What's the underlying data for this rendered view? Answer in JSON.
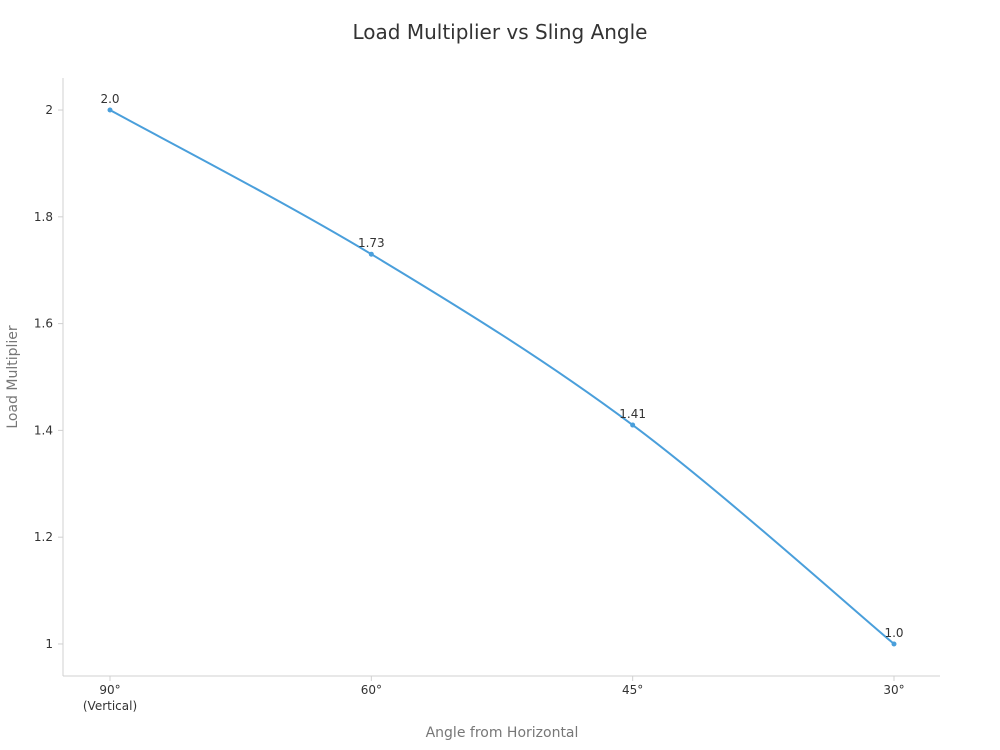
{
  "chart_data": {
    "type": "line",
    "title": "Load Multiplier vs Sling Angle",
    "xlabel": "Angle from Horizontal",
    "ylabel": "Load Multiplier",
    "categories": [
      "90°",
      "60°",
      "45°",
      "30°"
    ],
    "category_sublabels": [
      "(Vertical)",
      "",
      "",
      ""
    ],
    "series": [
      {
        "values": [
          2.0,
          1.73,
          1.41,
          1.0
        ],
        "data_labels": [
          "2.0",
          "1.73",
          "1.41",
          "1.0"
        ],
        "color": "#4a9fdb"
      }
    ],
    "yticks": [
      1,
      1.2,
      1.4,
      1.6,
      1.8,
      2
    ],
    "ytick_labels": [
      "1",
      "1.2",
      "1.4",
      "1.6",
      "1.8",
      "2"
    ],
    "ylim": [
      0.94,
      2.06
    ],
    "grid": false,
    "legend": "none"
  }
}
